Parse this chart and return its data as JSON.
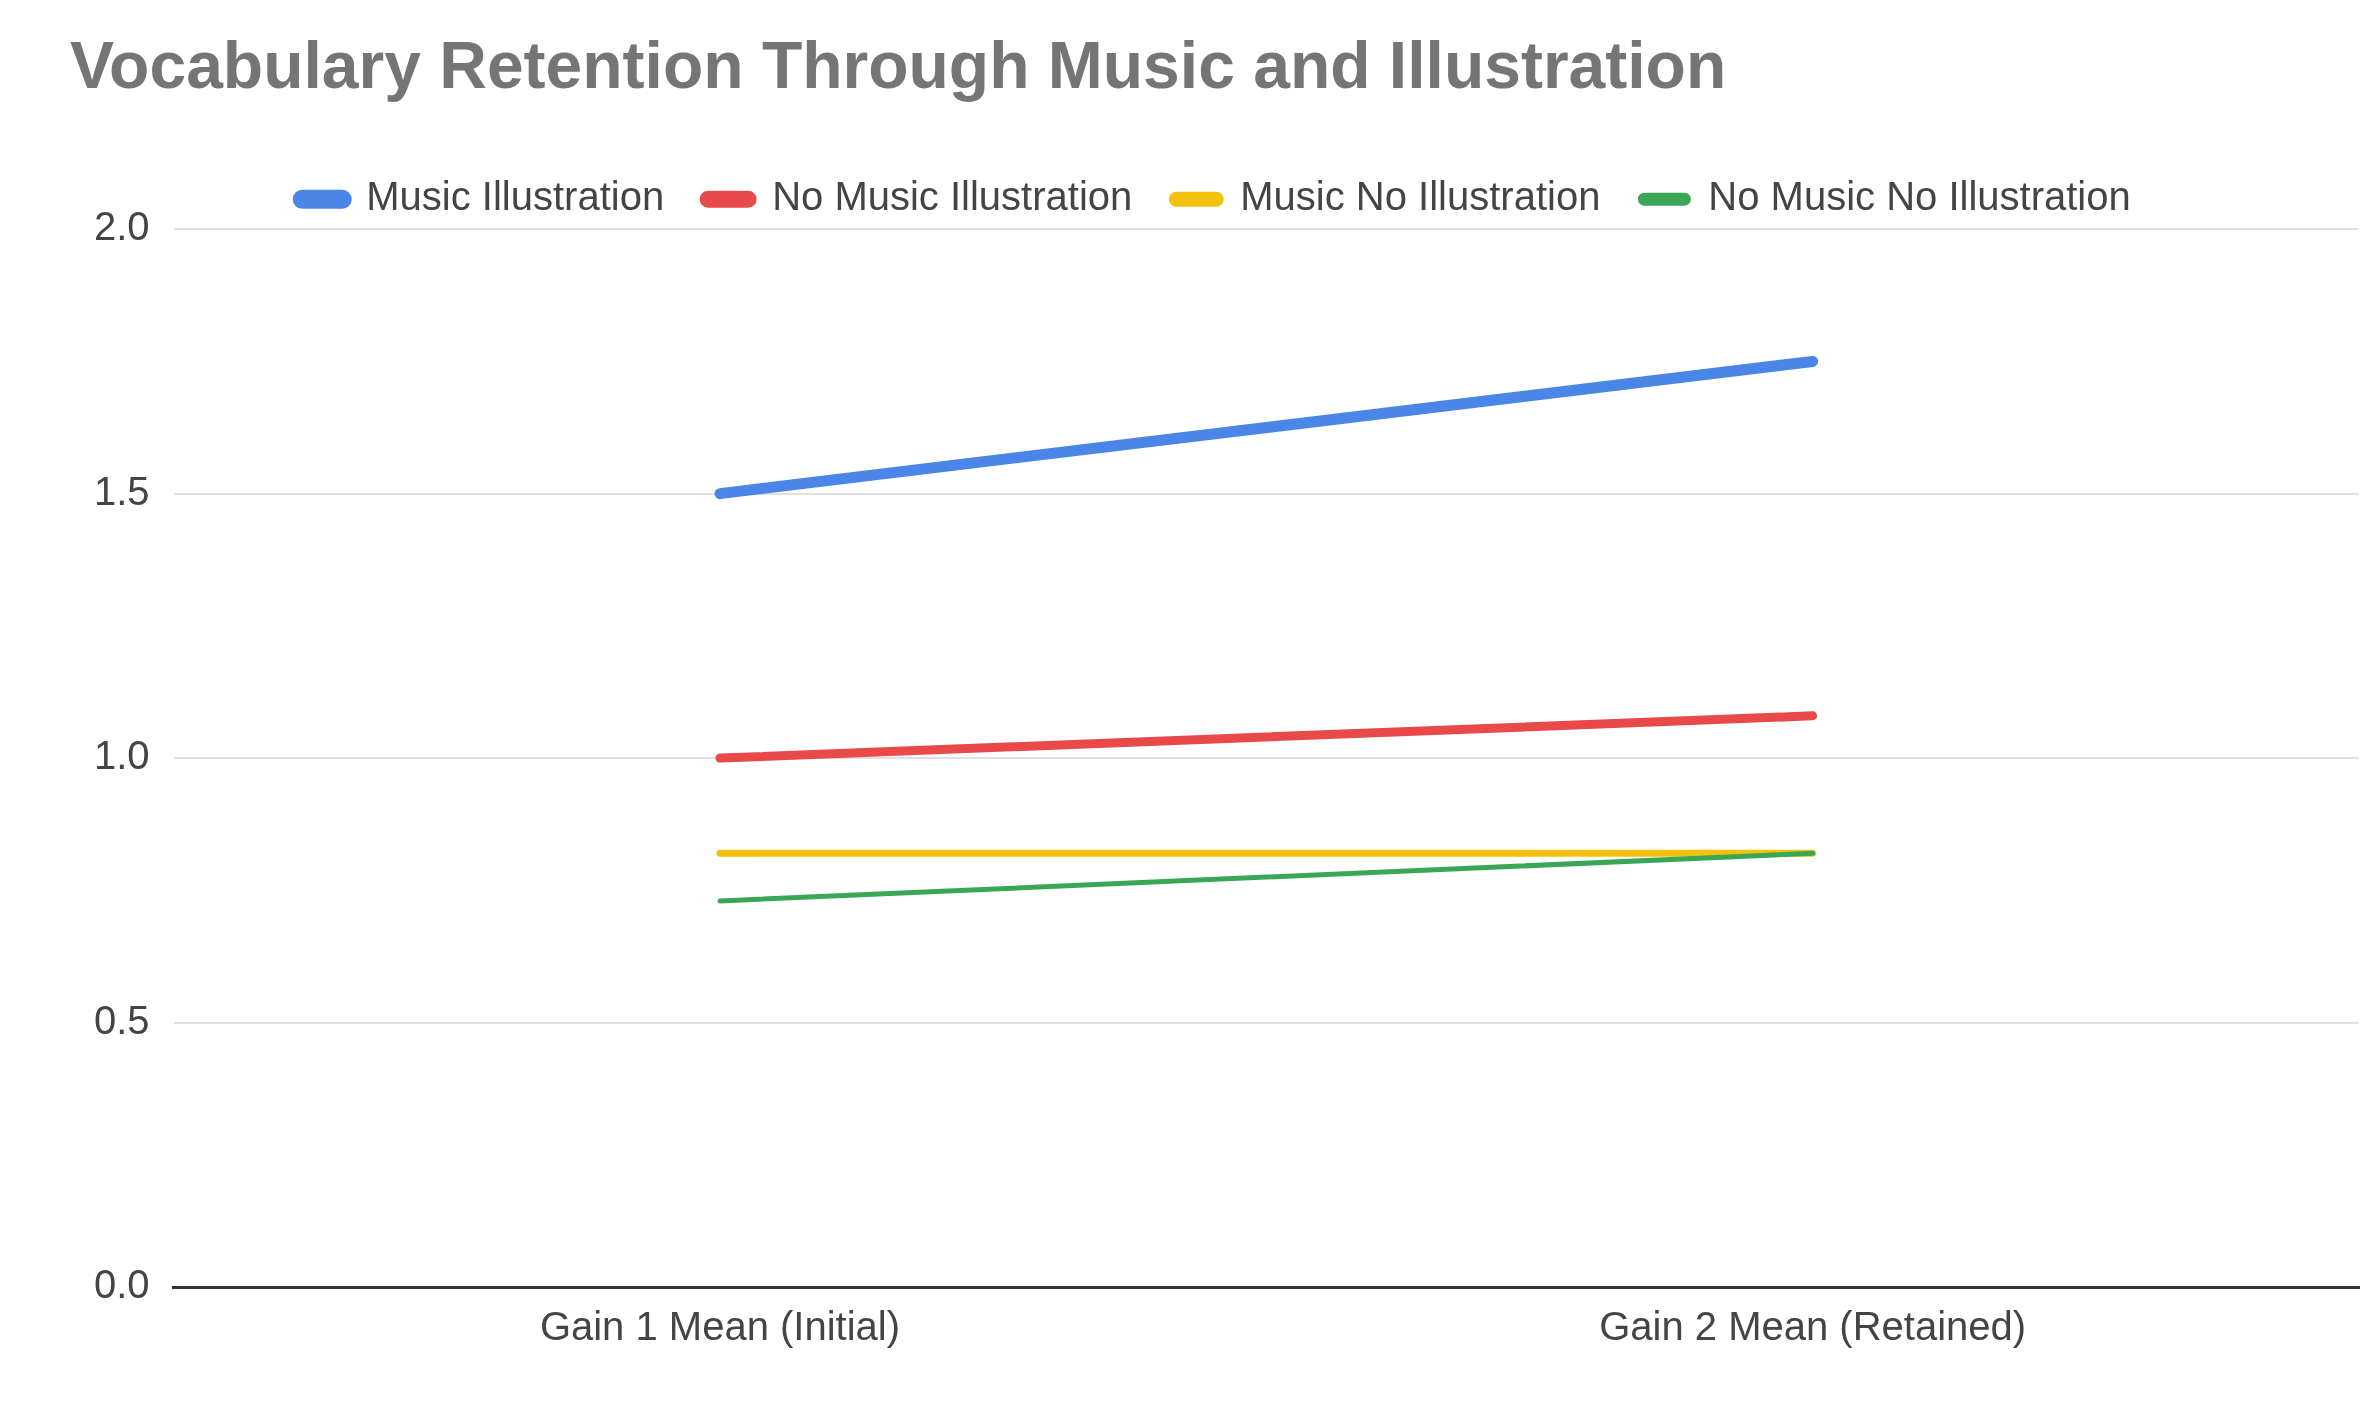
{
  "chart_data": {
    "type": "line",
    "title": "Vocabulary Retention Through Music and Illustration",
    "categories": [
      "Gain 1 Mean (Initial)",
      "Gain 2 Mean (Retained)"
    ],
    "series": [
      {
        "name": "Music Illustration",
        "color": "#4a86e8",
        "values": [
          1.5,
          1.75
        ]
      },
      {
        "name": "No Music Illustration",
        "color": "#e84a4a",
        "values": [
          1.0,
          1.08
        ]
      },
      {
        "name": "Music No Illustration",
        "color": "#f4c20d",
        "values": [
          0.82,
          0.82
        ]
      },
      {
        "name": "No Music No Illustration",
        "color": "#3aa757",
        "values": [
          0.73,
          0.82
        ]
      }
    ],
    "ylim": [
      0,
      2
    ],
    "yticks": [
      {
        "value": 0,
        "label": "0.0"
      },
      {
        "value": 0.5,
        "label": "0.5"
      },
      {
        "value": 1,
        "label": "1.0"
      },
      {
        "value": 1.5,
        "label": "1.5"
      },
      {
        "value": 2,
        "label": "2.0"
      }
    ],
    "grid": "y",
    "legend": "top",
    "marker": "none",
    "line_style": "solid"
  }
}
